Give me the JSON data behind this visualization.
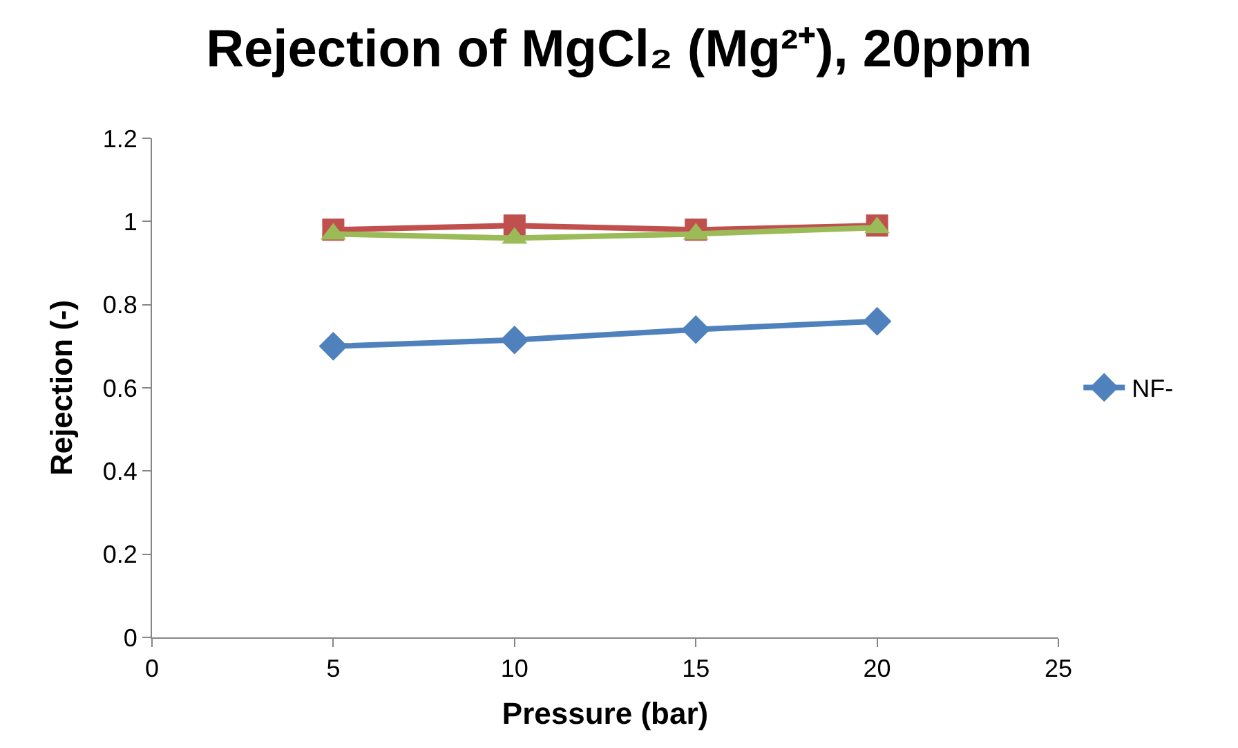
{
  "chart_data": {
    "type": "line",
    "title": "Rejection of MgCl₂ (Mg²⁺), 20ppm",
    "xlabel": "Pressure (bar)",
    "ylabel": "Rejection (-)",
    "x": [
      5,
      10,
      15,
      20
    ],
    "series": [
      {
        "name": "NF-",
        "color": "#4f81bd",
        "marker": "diamond",
        "values": [
          0.7,
          0.715,
          0.74,
          0.76
        ]
      },
      {
        "color": "#c0504d",
        "marker": "square",
        "values": [
          0.98,
          0.99,
          0.98,
          0.99
        ]
      },
      {
        "color": "#9bbb59",
        "marker": "triangle",
        "values": [
          0.97,
          0.96,
          0.97,
          0.985
        ]
      }
    ],
    "xlim": [
      0,
      25
    ],
    "xticks": [
      0,
      5,
      10,
      15,
      20,
      25
    ],
    "ylim": [
      0,
      1.2
    ],
    "yticks": [
      0,
      0.2,
      0.4,
      0.6,
      0.8,
      1,
      1.2
    ],
    "legend": "right",
    "line_style": "solid"
  }
}
